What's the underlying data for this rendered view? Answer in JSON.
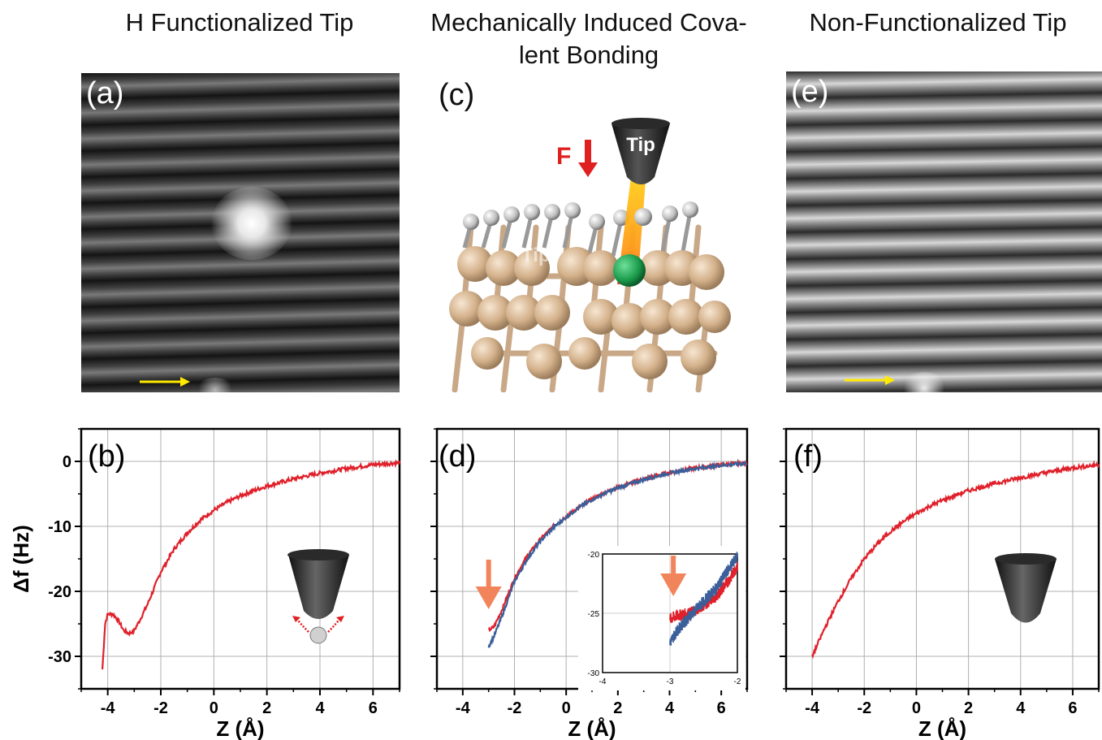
{
  "titles": {
    "left": "H Functionalized Tip",
    "middle": "Mechanically Induced Cova-\nlent Bonding",
    "right": "Non-Functionalized Tip"
  },
  "panel_letters": {
    "a": "(a)",
    "b": "(b)",
    "c": "(c)",
    "d": "(d)",
    "e": "(e)",
    "f": "(f)"
  },
  "diagram_labels": {
    "force": "F",
    "tip": "Tip",
    "tip_faint": "Tip"
  },
  "colors": {
    "curve_red": "#e0202a",
    "curve_blue": "#3a5f9a",
    "arrow_yellow": "#ffea00",
    "arrow_orange": "#f2845c",
    "force_red": "#e02020",
    "atom": "#d9b894",
    "bond_atom": "#1a9a4a"
  },
  "chart_data": [
    {
      "panel": "b",
      "type": "line",
      "ylabel": "Δf (Hz)",
      "xlabel": "Z (Å)",
      "xlim": [
        -5,
        7
      ],
      "ylim": [
        -35,
        5
      ],
      "xticks": [
        -4,
        -2,
        0,
        2,
        4,
        6
      ],
      "yticks": [
        0,
        -10,
        -20,
        -30
      ],
      "grid": true,
      "series": [
        {
          "color": "#e0202a",
          "x": [
            -4.2,
            -4.1,
            -4.0,
            -3.8,
            -3.6,
            -3.4,
            -3.2,
            -3.0,
            -2.8,
            -2.5,
            -2.0,
            -1.5,
            -1.0,
            -0.5,
            0,
            0.5,
            1,
            1.5,
            2,
            3,
            4,
            5,
            6,
            7
          ],
          "y": [
            -32,
            -25,
            -23.5,
            -23.5,
            -24.5,
            -26,
            -26.5,
            -26,
            -24.5,
            -22,
            -17,
            -13.5,
            -11,
            -9,
            -7.5,
            -6.3,
            -5.3,
            -4.5,
            -3.8,
            -2.7,
            -1.8,
            -1.1,
            -0.5,
            -0.2
          ]
        }
      ]
    },
    {
      "panel": "d",
      "type": "line",
      "xlabel": "Z (Å)",
      "xlim": [
        -5,
        7
      ],
      "ylim": [
        -35,
        5
      ],
      "xticks": [
        -4,
        -2,
        0,
        2,
        4,
        6
      ],
      "grid": true,
      "series": [
        {
          "color": "#e0202a",
          "x": [
            -3.0,
            -2.8,
            -2.5,
            -2.0,
            -1.5,
            -1.0,
            -0.5,
            0,
            0.5,
            1,
            1.5,
            2,
            3,
            4,
            5,
            6,
            7
          ],
          "y": [
            -26,
            -25.5,
            -23,
            -18,
            -14.5,
            -12,
            -10,
            -8.5,
            -7,
            -5.8,
            -4.8,
            -4,
            -2.7,
            -1.7,
            -1,
            -0.5,
            -0.2
          ]
        },
        {
          "color": "#3a5f9a",
          "x": [
            -3.0,
            -2.8,
            -2.5,
            -2.0,
            -1.5,
            -1.0,
            -0.5,
            0,
            0.5,
            1,
            1.5,
            2,
            3,
            4,
            5,
            6,
            7
          ],
          "y": [
            -28.5,
            -27,
            -24,
            -18.5,
            -15,
            -12.3,
            -10.2,
            -8.6,
            -7.1,
            -5.9,
            -4.9,
            -4.1,
            -2.8,
            -1.8,
            -1.1,
            -0.6,
            -0.3
          ]
        }
      ],
      "inset": {
        "xlim": [
          -4,
          -2
        ],
        "ylim": [
          -30,
          -20
        ],
        "xticks": [
          -4,
          -3,
          -2
        ],
        "yticks": [
          -20,
          -25,
          -30
        ],
        "series": [
          {
            "color": "#e0202a",
            "x": [
              -3.0,
              -2.9,
              -2.7,
              -2.5,
              -2.3,
              -2.1,
              -2.0
            ],
            "y": [
              -25.5,
              -25.2,
              -25,
              -24.3,
              -23.5,
              -22,
              -21
            ]
          },
          {
            "color": "#3a5f9a",
            "x": [
              -3.0,
              -2.9,
              -2.7,
              -2.5,
              -2.3,
              -2.1,
              -2.0
            ],
            "y": [
              -27.5,
              -26.5,
              -25.2,
              -24,
              -22.8,
              -21,
              -20.2
            ]
          }
        ]
      }
    },
    {
      "panel": "f",
      "type": "line",
      "xlabel": "Z (Å)",
      "xlim": [
        -5,
        7
      ],
      "ylim": [
        -35,
        5
      ],
      "xticks": [
        -4,
        -2,
        0,
        2,
        4,
        6
      ],
      "grid": true,
      "series": [
        {
          "color": "#e0202a",
          "x": [
            -4.0,
            -3.5,
            -3.0,
            -2.5,
            -2.0,
            -1.5,
            -1.0,
            -0.5,
            0,
            0.5,
            1,
            1.5,
            2,
            3,
            4,
            5,
            6,
            7
          ],
          "y": [
            -30,
            -25.5,
            -21.5,
            -18,
            -15,
            -12.7,
            -10.8,
            -9.3,
            -8.0,
            -6.9,
            -6.0,
            -5.2,
            -4.5,
            -3.4,
            -2.5,
            -1.7,
            -1.0,
            -0.5
          ]
        }
      ]
    }
  ]
}
